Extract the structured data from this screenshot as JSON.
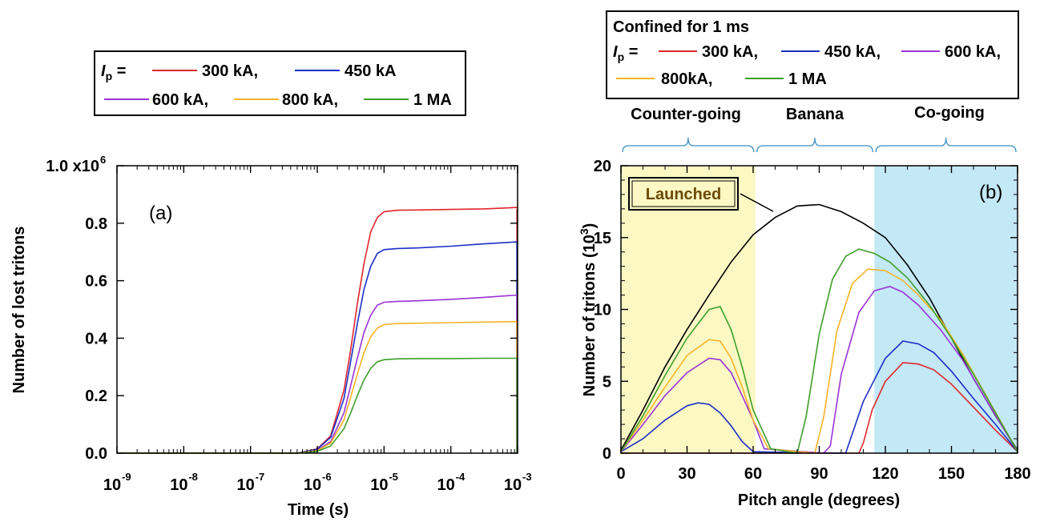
{
  "legend_a": {
    "ip_symbol": "I",
    "ip_sub": "p",
    "equals": "=",
    "entries": [
      {
        "label": "300 kA,",
        "color": "#e0252b"
      },
      {
        "label": "450 kA",
        "color": "#1c2fc7"
      },
      {
        "label": "600 kA,",
        "color": "#9b33d6"
      },
      {
        "label": "800 kA,",
        "color": "#f5b324"
      },
      {
        "label": "1 MA",
        "color": "#3e9e2a"
      }
    ]
  },
  "legend_b": {
    "header": "Confined for 1 ms",
    "ip_symbol": "I",
    "ip_sub": "p",
    "equals": "=",
    "entries": [
      {
        "label": "300 kA,",
        "color": "#e0252b"
      },
      {
        "label": "450 kA,",
        "color": "#1c2fc7"
      },
      {
        "label": "600 kA,",
        "color": "#9b33d6"
      },
      {
        "label": "800kA,",
        "color": "#f5b324"
      },
      {
        "label": "1 MA",
        "color": "#3e9e2a"
      }
    ]
  },
  "regions": {
    "counter": "Counter-going",
    "banana": "Banana",
    "co": "Co-going",
    "counter_color": "#fbf8c4",
    "co_color": "#c3e8f6",
    "brace_color": "#3b8fc4"
  },
  "chart_data": [
    {
      "type": "line",
      "panel_label": "(a)",
      "xlabel": "Time (s)",
      "ylabel": "Number of lost tritons",
      "xscale": "log",
      "xlim": [
        1e-09,
        0.001
      ],
      "ylim": [
        0,
        1000000
      ],
      "xticks": [
        {
          "exp": "-9"
        },
        {
          "exp": "-8"
        },
        {
          "exp": "-7"
        },
        {
          "exp": "-6"
        },
        {
          "exp": "-5"
        },
        {
          "exp": "-4"
        },
        {
          "exp": "-3"
        }
      ],
      "tick_base": "10",
      "yticks": [
        "0.0",
        "0.2",
        "0.4",
        "0.6",
        "0.8",
        "1.0 x10"
      ],
      "ytick_top_exp": "6",
      "x_log": [
        -9,
        -6.3,
        -6.0,
        -5.8,
        -5.6,
        -5.5,
        -5.4,
        -5.3,
        -5.2,
        -5.1,
        -5.0,
        -4.8,
        -4.5,
        -4.0,
        -3.5,
        -3.0
      ],
      "series": [
        {
          "name": "300 kA",
          "color": "#e0252b",
          "plateau": 850000,
          "values": [
            0,
            0,
            15000,
            60000,
            220000,
            360000,
            520000,
            660000,
            770000,
            820000,
            840000,
            845000,
            846000,
            848000,
            850000,
            855000
          ]
        },
        {
          "name": "450 kA",
          "color": "#1c2fc7",
          "plateau": 735000,
          "values": [
            0,
            0,
            14000,
            55000,
            190000,
            320000,
            450000,
            570000,
            650000,
            695000,
            708000,
            712000,
            714000,
            720000,
            728000,
            735000
          ]
        },
        {
          "name": "600 kA",
          "color": "#9b33d6",
          "plateau": 550000,
          "values": [
            0,
            0,
            10000,
            40000,
            140000,
            235000,
            330000,
            420000,
            480000,
            515000,
            525000,
            528000,
            530000,
            535000,
            542000,
            550000
          ]
        },
        {
          "name": "800 kA",
          "color": "#f5b324",
          "plateau": 458000,
          "values": [
            0,
            0,
            9000,
            35000,
            115000,
            195000,
            275000,
            350000,
            405000,
            435000,
            447000,
            451000,
            452000,
            454000,
            456000,
            458000
          ]
        },
        {
          "name": "1 MA",
          "color": "#3e9e2a",
          "plateau": 330000,
          "values": [
            0,
            0,
            6000,
            25000,
            85000,
            140000,
            200000,
            255000,
            295000,
            318000,
            325000,
            328000,
            329000,
            329000,
            330000,
            330000
          ]
        }
      ]
    },
    {
      "type": "line",
      "panel_label": "(b)",
      "xlabel": "Pitch angle (degrees)",
      "ylabel": "Number of tritons (10",
      "ylabel_exp": "3",
      "ylabel_end": ")",
      "xlim": [
        0,
        180
      ],
      "ylim": [
        0,
        20
      ],
      "xticks": [
        "0",
        "30",
        "60",
        "90",
        "120",
        "150",
        "180"
      ],
      "yticks": [
        "0",
        "5",
        "10",
        "15",
        "20"
      ],
      "annotation": "Launched",
      "regions_deg": [
        [
          0,
          61
        ],
        [
          61,
          115
        ],
        [
          115,
          180
        ]
      ],
      "launched": {
        "x": [
          0,
          10,
          20,
          30,
          40,
          50,
          60,
          70,
          80,
          90,
          100,
          110,
          120,
          130,
          140,
          150,
          160,
          170,
          180
        ],
        "y": [
          0.2,
          3.0,
          6.0,
          8.6,
          11.0,
          13.3,
          15.2,
          16.4,
          17.2,
          17.3,
          16.8,
          16.0,
          15.0,
          13.1,
          10.8,
          8.0,
          5.2,
          2.6,
          0.2
        ],
        "color": "#000000"
      },
      "series": [
        {
          "name": "300 kA",
          "color": "#e0252b",
          "x": [
            0,
            60,
            108,
            110,
            114,
            120,
            128,
            135,
            142,
            150,
            160,
            170,
            180
          ],
          "y": [
            0,
            0,
            0,
            0.7,
            3.0,
            5.0,
            6.3,
            6.2,
            5.8,
            4.8,
            3.2,
            1.6,
            0.1
          ]
        },
        {
          "name": "450 kA",
          "color": "#1c2fc7",
          "x": [
            0,
            10,
            20,
            30,
            35,
            40,
            45,
            50,
            55,
            60,
            95,
            98,
            102,
            110,
            120,
            128,
            135,
            142,
            150,
            160,
            170,
            180
          ],
          "y": [
            0.1,
            1.0,
            2.3,
            3.3,
            3.5,
            3.4,
            2.8,
            1.9,
            0.8,
            0.1,
            0,
            0,
            0,
            3.6,
            6.6,
            7.8,
            7.6,
            7.0,
            5.7,
            3.8,
            2.0,
            0.1
          ]
        },
        {
          "name": "600 kA",
          "color": "#9b33d6",
          "x": [
            0,
            10,
            20,
            30,
            40,
            45,
            50,
            55,
            60,
            65,
            92,
            95,
            100,
            108,
            115,
            122,
            128,
            135,
            145,
            155,
            165,
            180
          ],
          "y": [
            0.1,
            2.0,
            4.0,
            5.6,
            6.6,
            6.5,
            5.6,
            4.0,
            2.3,
            0.3,
            0,
            0.5,
            5.5,
            9.8,
            11.3,
            11.6,
            11.2,
            10.3,
            8.6,
            6.5,
            3.9,
            0.1
          ]
        },
        {
          "name": "800 kA",
          "color": "#f5b324",
          "x": [
            0,
            10,
            20,
            30,
            40,
            45,
            50,
            55,
            60,
            67,
            88,
            92,
            98,
            105,
            112,
            120,
            128,
            135,
            145,
            155,
            165,
            180
          ],
          "y": [
            0.1,
            2.3,
            4.6,
            6.8,
            7.9,
            7.8,
            6.6,
            4.6,
            2.3,
            0.3,
            0,
            2.5,
            8.5,
            11.8,
            12.8,
            12.7,
            12.0,
            11.0,
            9.3,
            6.9,
            4.2,
            0.1
          ]
        },
        {
          "name": "1 MA",
          "color": "#3e9e2a",
          "x": [
            0,
            10,
            20,
            30,
            40,
            45,
            50,
            55,
            60,
            68,
            80,
            84,
            90,
            96,
            102,
            108,
            115,
            122,
            130,
            140,
            150,
            160,
            170,
            180
          ],
          "y": [
            0.1,
            2.6,
            5.4,
            8.0,
            10.0,
            10.2,
            8.6,
            6.0,
            3.0,
            0.3,
            0,
            2.5,
            8.3,
            12.1,
            13.7,
            14.2,
            13.9,
            13.3,
            12.2,
            10.3,
            8.0,
            5.5,
            2.8,
            0.1
          ]
        }
      ]
    }
  ]
}
